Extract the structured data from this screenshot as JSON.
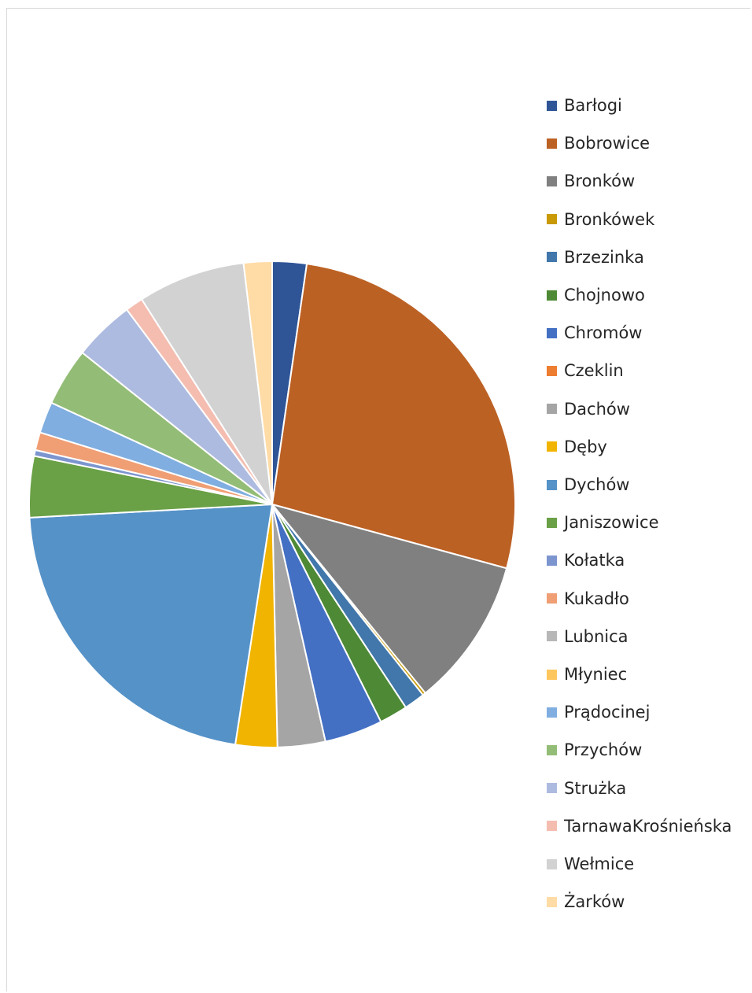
{
  "chart_data": {
    "type": "pie",
    "title": "",
    "legend_position": "right",
    "start_angle_deg": 0,
    "direction": "clockwise",
    "slices": [
      {
        "name": "Barłogi",
        "value": 2.3,
        "color": "#2f5597"
      },
      {
        "name": "Bobrowice",
        "value": 27.2,
        "color": "#bc6124"
      },
      {
        "name": "Bronków",
        "value": 10.0,
        "color": "#808080"
      },
      {
        "name": "Bronkówek",
        "value": 0.2,
        "color": "#c99a06"
      },
      {
        "name": "Brzezinka",
        "value": 1.4,
        "color": "#4177ab"
      },
      {
        "name": "Chojnowo",
        "value": 1.9,
        "color": "#4e8a35"
      },
      {
        "name": "Chromów",
        "value": 3.9,
        "color": "#4470c4"
      },
      {
        "name": "Czeklin",
        "value": 0.0,
        "color": "#ed7d31"
      },
      {
        "name": "Dachów",
        "value": 3.2,
        "color": "#a5a5a5"
      },
      {
        "name": "Dęby",
        "value": 2.8,
        "color": "#f1b400"
      },
      {
        "name": "Dychów",
        "value": 21.9,
        "color": "#5592c8"
      },
      {
        "name": "Janiszowice",
        "value": 4.1,
        "color": "#6aa046"
      },
      {
        "name": "Kołatka",
        "value": 0.4,
        "color": "#7c95cf"
      },
      {
        "name": "Kukadło",
        "value": 1.2,
        "color": "#f09e74"
      },
      {
        "name": "Lubnica",
        "value": 0.0,
        "color": "#b7b7b7"
      },
      {
        "name": "Młyniec",
        "value": 0.0,
        "color": "#fec65e"
      },
      {
        "name": "Prądocinej",
        "value": 2.1,
        "color": "#80aee0"
      },
      {
        "name": "Przychów",
        "value": 3.9,
        "color": "#93bd76"
      },
      {
        "name": "Strużka",
        "value": 4.1,
        "color": "#aebbe0"
      },
      {
        "name": "TarnawaKrośnieńska",
        "value": 1.2,
        "color": "#f4bdb0"
      },
      {
        "name": "Wełmice",
        "value": 7.2,
        "color": "#d2d2d2"
      },
      {
        "name": "Żarków",
        "value": 1.9,
        "color": "#ffdba6"
      }
    ]
  }
}
